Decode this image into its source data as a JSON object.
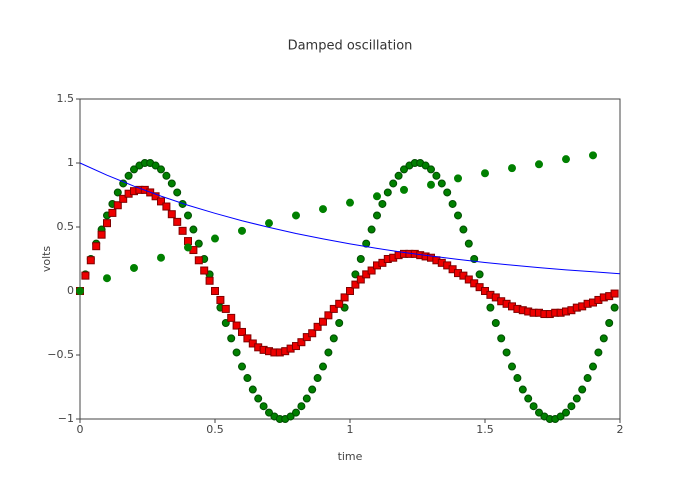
{
  "chart_data": {
    "type": "scatter",
    "title": "Damped oscillation",
    "x_label": "time",
    "y_label": "volts",
    "x": [
      0,
      0.02,
      0.04,
      0.06,
      0.08,
      0.1,
      0.12,
      0.14,
      0.16,
      0.18,
      0.2,
      0.22,
      0.24,
      0.26,
      0.28,
      0.3,
      0.32,
      0.34,
      0.36,
      0.38,
      0.4,
      0.42,
      0.44,
      0.46,
      0.48,
      0.5,
      0.52,
      0.54,
      0.56,
      0.58,
      0.6,
      0.62,
      0.64,
      0.66,
      0.68,
      0.7,
      0.72,
      0.74,
      0.76,
      0.78,
      0.8,
      0.82,
      0.84,
      0.86,
      0.88,
      0.9,
      0.92,
      0.94,
      0.96,
      0.98,
      1,
      1.02,
      1.04,
      1.06,
      1.08,
      1.1,
      1.12,
      1.14,
      1.16,
      1.18,
      1.2,
      1.22,
      1.24,
      1.26,
      1.28,
      1.3,
      1.32,
      1.34,
      1.36,
      1.38,
      1.4,
      1.42,
      1.44,
      1.46,
      1.48,
      1.5,
      1.52,
      1.54,
      1.56,
      1.58,
      1.6,
      1.62,
      1.64,
      1.66,
      1.68,
      1.7,
      1.72,
      1.74,
      1.76,
      1.78,
      1.8,
      1.82,
      1.84,
      1.86,
      1.88,
      1.9,
      1.92,
      1.94,
      1.96,
      1.98
    ],
    "series": [
      {
        "mode": "markers",
        "marker": "circle",
        "color": "#008000",
        "edge_color": "#004d00",
        "values": [
          0,
          0.13,
          0.25,
          0.37,
          0.48,
          0.59,
          0.68,
          0.77,
          0.84,
          0.9,
          0.95,
          0.98,
          1,
          1,
          0.98,
          0.95,
          0.9,
          0.84,
          0.77,
          0.68,
          0.59,
          0.48,
          0.37,
          0.25,
          0.13,
          0,
          -0.13,
          -0.25,
          -0.37,
          -0.48,
          -0.59,
          -0.68,
          -0.77,
          -0.84,
          -0.9,
          -0.95,
          -0.98,
          -1,
          -1,
          -0.98,
          -0.95,
          -0.9,
          -0.84,
          -0.77,
          -0.68,
          -0.59,
          -0.48,
          -0.37,
          -0.25,
          -0.13,
          0,
          0.13,
          0.25,
          0.37,
          0.48,
          0.59,
          0.68,
          0.77,
          0.84,
          0.9,
          0.95,
          0.98,
          1,
          1,
          0.98,
          0.95,
          0.9,
          0.84,
          0.77,
          0.68,
          0.59,
          0.48,
          0.37,
          0.25,
          0.13,
          0,
          -0.13,
          -0.25,
          -0.37,
          -0.48,
          -0.59,
          -0.68,
          -0.77,
          -0.84,
          -0.9,
          -0.95,
          -0.98,
          -1,
          -1,
          -0.98,
          -0.95,
          -0.9,
          -0.84,
          -0.77,
          -0.68,
          -0.59,
          -0.48,
          -0.37,
          -0.25,
          -0.13
        ]
      },
      {
        "mode": "markers",
        "marker": "square",
        "color": "#ee0000",
        "edge_color": "#800000",
        "values": [
          0,
          0.12,
          0.24,
          0.35,
          0.44,
          0.53,
          0.61,
          0.67,
          0.72,
          0.76,
          0.78,
          0.79,
          0.79,
          0.77,
          0.74,
          0.7,
          0.66,
          0.6,
          0.54,
          0.47,
          0.39,
          0.32,
          0.24,
          0.16,
          0.08,
          0,
          -0.07,
          -0.14,
          -0.21,
          -0.27,
          -0.32,
          -0.37,
          -0.41,
          -0.44,
          -0.46,
          -0.47,
          -0.48,
          -0.48,
          -0.47,
          -0.45,
          -0.43,
          -0.4,
          -0.36,
          -0.33,
          -0.28,
          -0.24,
          -0.19,
          -0.14,
          -0.1,
          -0.05,
          0,
          0.05,
          0.09,
          0.13,
          0.16,
          0.2,
          0.22,
          0.25,
          0.26,
          0.28,
          0.29,
          0.29,
          0.29,
          0.28,
          0.27,
          0.26,
          0.24,
          0.22,
          0.2,
          0.17,
          0.14,
          0.12,
          0.09,
          0.06,
          0.03,
          0,
          -0.03,
          -0.05,
          -0.08,
          -0.1,
          -0.12,
          -0.14,
          -0.15,
          -0.16,
          -0.17,
          -0.17,
          -0.18,
          -0.18,
          -0.17,
          -0.17,
          -0.16,
          -0.15,
          -0.13,
          -0.12,
          -0.1,
          -0.09,
          -0.07,
          -0.05,
          -0.04,
          -0.02
        ]
      },
      {
        "mode": "lines",
        "color": "#0000ff",
        "x": [
          0,
          0.1,
          0.2,
          0.3,
          0.4,
          0.5,
          0.6,
          0.7,
          0.8,
          0.9,
          1,
          1.1,
          1.2,
          1.3,
          1.4,
          1.5,
          1.6,
          1.7,
          1.8,
          1.9,
          2
        ],
        "values": [
          1,
          0.905,
          0.819,
          0.741,
          0.67,
          0.607,
          0.549,
          0.497,
          0.449,
          0.407,
          0.368,
          0.333,
          0.301,
          0.273,
          0.247,
          0.223,
          0.202,
          0.183,
          0.165,
          0.15,
          0.135
        ]
      },
      {
        "mode": "markers",
        "marker": "circle",
        "color": "#008000",
        "edge_color": "#008000",
        "x": [
          0,
          0.1,
          0.2,
          0.3,
          0.4,
          0.5,
          0.6,
          0.7,
          0.8,
          0.9,
          1,
          1.1,
          1.2,
          1.3,
          1.4,
          1.5,
          1.6,
          1.7,
          1.8,
          1.9
        ],
        "values": [
          0,
          0.1,
          0.18,
          0.26,
          0.34,
          0.41,
          0.47,
          0.53,
          0.59,
          0.64,
          0.69,
          0.74,
          0.79,
          0.83,
          0.88,
          0.92,
          0.96,
          0.99,
          1.03,
          1.06
        ]
      }
    ],
    "xlim": [
      0,
      2
    ],
    "xticks": [
      0,
      0.5,
      1,
      1.5,
      2
    ],
    "ylim": [
      -1,
      1.5
    ],
    "yticks": [
      {
        "value": -1,
        "label": "−1"
      },
      {
        "value": -0.5,
        "label": "−0.5"
      },
      0,
      0.5,
      1,
      1.5
    ],
    "grid": false
  }
}
